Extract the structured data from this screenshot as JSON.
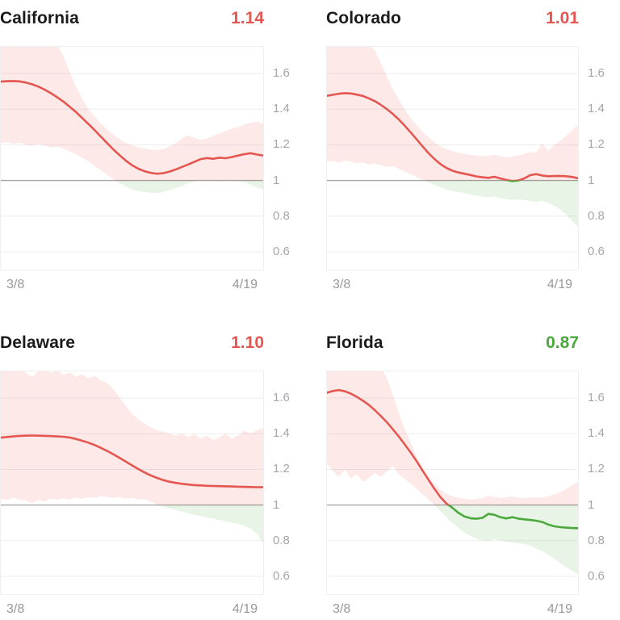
{
  "axis": {
    "yticks": [
      "1.6",
      "1.4",
      "1.2",
      "1",
      "0.8",
      "0.6"
    ],
    "ytick_values": [
      1.6,
      1.4,
      1.2,
      1,
      0.8,
      0.6
    ],
    "y_domain": [
      0.5,
      1.75
    ],
    "baseline_value": 1,
    "x_start_label": "3/8",
    "x_end_label": "4/19"
  },
  "colors": {
    "above": "#e4564f",
    "below": "#4aa83c",
    "band_above": "rgba(228,86,79,0.13)",
    "band_below": "rgba(74,168,60,0.13)",
    "gridline": "#ededed",
    "baseline": "#a6a6a6",
    "tick_text": "#a3a6aa",
    "title_text": "#1b1b1b"
  },
  "chart_data": [
    {
      "type": "line",
      "state": "California",
      "current": "1.14",
      "trend": "above",
      "x_range": [
        "3/8",
        "4/19"
      ],
      "mean": [
        1.555,
        1.557,
        1.558,
        1.556,
        1.55,
        1.54,
        1.527,
        1.51,
        1.49,
        1.468,
        1.443,
        1.415,
        1.385,
        1.352,
        1.318,
        1.283,
        1.247,
        1.21,
        1.175,
        1.142,
        1.112,
        1.086,
        1.066,
        1.052,
        1.043,
        1.038,
        1.041,
        1.05,
        1.062,
        1.076,
        1.09,
        1.105,
        1.12,
        1.126,
        1.122,
        1.128,
        1.125,
        1.132,
        1.14,
        1.148,
        1.153,
        1.146,
        1.14
      ],
      "upper": [
        1.78,
        1.78,
        1.78,
        1.78,
        1.78,
        1.78,
        1.78,
        1.78,
        1.78,
        1.77,
        1.7,
        1.61,
        1.53,
        1.46,
        1.4,
        1.36,
        1.32,
        1.287,
        1.257,
        1.232,
        1.212,
        1.197,
        1.186,
        1.179,
        1.174,
        1.171,
        1.176,
        1.19,
        1.21,
        1.236,
        1.254,
        1.24,
        1.227,
        1.237,
        1.25,
        1.264,
        1.278,
        1.29,
        1.3,
        1.314,
        1.325,
        1.33,
        1.32
      ],
      "lower": [
        1.21,
        1.216,
        1.205,
        1.212,
        1.2,
        1.195,
        1.206,
        1.196,
        1.185,
        1.19,
        1.18,
        1.165,
        1.148,
        1.128,
        1.108,
        1.084,
        1.058,
        1.032,
        1.008,
        0.985,
        0.966,
        0.951,
        0.941,
        0.935,
        0.932,
        0.93,
        0.936,
        0.946,
        0.956,
        0.97,
        0.985,
        0.995,
        1.0,
        0.998,
        1.0,
        0.995,
        0.998,
        1.0,
        0.996,
        0.99,
        0.976,
        0.96,
        0.95
      ]
    },
    {
      "type": "line",
      "state": "Colorado",
      "current": "1.01",
      "trend": "above",
      "x_range": [
        "3/8",
        "4/19"
      ],
      "mean": [
        1.475,
        1.481,
        1.487,
        1.49,
        1.488,
        1.482,
        1.474,
        1.461,
        1.445,
        1.425,
        1.401,
        1.374,
        1.343,
        1.308,
        1.27,
        1.231,
        1.191,
        1.153,
        1.12,
        1.092,
        1.07,
        1.055,
        1.045,
        1.038,
        1.031,
        1.023,
        1.018,
        1.015,
        1.021,
        1.012,
        1.003,
        0.997,
        1.0,
        1.012,
        1.03,
        1.036,
        1.028,
        1.024,
        1.025,
        1.026,
        1.024,
        1.02,
        1.013
      ],
      "upper": [
        1.78,
        1.78,
        1.78,
        1.78,
        1.78,
        1.78,
        1.78,
        1.77,
        1.73,
        1.66,
        1.585,
        1.515,
        1.455,
        1.4,
        1.352,
        1.31,
        1.273,
        1.242,
        1.213,
        1.191,
        1.176,
        1.165,
        1.156,
        1.149,
        1.144,
        1.139,
        1.135,
        1.139,
        1.145,
        1.136,
        1.13,
        1.134,
        1.141,
        1.15,
        1.161,
        1.155,
        1.208,
        1.166,
        1.198,
        1.22,
        1.25,
        1.282,
        1.312
      ],
      "lower": [
        1.105,
        1.11,
        1.1,
        1.112,
        1.105,
        1.096,
        1.101,
        1.09,
        1.096,
        1.085,
        1.076,
        1.081,
        1.066,
        1.05,
        1.035,
        1.019,
        1.004,
        0.989,
        0.975,
        0.961,
        0.95,
        0.941,
        0.935,
        0.929,
        0.921,
        0.915,
        0.909,
        0.905,
        0.911,
        0.901,
        0.895,
        0.89,
        0.895,
        0.89,
        0.885,
        0.879,
        0.886,
        0.874,
        0.859,
        0.838,
        0.809,
        0.772,
        0.74
      ]
    },
    {
      "type": "line",
      "state": "Delaware",
      "current": "1.10",
      "trend": "above",
      "x_range": [
        "3/8",
        "4/19"
      ],
      "mean": [
        1.378,
        1.382,
        1.385,
        1.388,
        1.389,
        1.39,
        1.389,
        1.388,
        1.387,
        1.385,
        1.383,
        1.379,
        1.371,
        1.361,
        1.35,
        1.337,
        1.321,
        1.304,
        1.285,
        1.265,
        1.244,
        1.223,
        1.202,
        1.183,
        1.166,
        1.152,
        1.14,
        1.131,
        1.124,
        1.119,
        1.115,
        1.112,
        1.11,
        1.108,
        1.107,
        1.106,
        1.105,
        1.104,
        1.103,
        1.102,
        1.101,
        1.1,
        1.1
      ],
      "upper": [
        1.77,
        1.78,
        1.76,
        1.78,
        1.74,
        1.72,
        1.75,
        1.77,
        1.74,
        1.76,
        1.73,
        1.745,
        1.72,
        1.735,
        1.71,
        1.725,
        1.7,
        1.683,
        1.652,
        1.603,
        1.556,
        1.512,
        1.48,
        1.456,
        1.436,
        1.421,
        1.41,
        1.4,
        1.39,
        1.4,
        1.381,
        1.398,
        1.372,
        1.39,
        1.363,
        1.381,
        1.4,
        1.372,
        1.39,
        1.418,
        1.4,
        1.42,
        1.432
      ],
      "lower": [
        1.035,
        1.03,
        1.04,
        1.03,
        1.025,
        1.012,
        1.028,
        1.02,
        1.035,
        1.028,
        1.038,
        1.03,
        1.042,
        1.035,
        1.045,
        1.04,
        1.05,
        1.045,
        1.04,
        1.045,
        1.035,
        1.04,
        1.03,
        1.035,
        1.02,
        1.005,
        0.992,
        0.982,
        0.972,
        0.963,
        0.954,
        0.945,
        0.938,
        0.93,
        0.924,
        0.916,
        0.909,
        0.901,
        0.894,
        0.885,
        0.868,
        0.838,
        0.788
      ]
    },
    {
      "type": "line",
      "state": "Florida",
      "current": "0.87",
      "trend": "below",
      "x_range": [
        "3/8",
        "4/19"
      ],
      "mean": [
        1.63,
        1.64,
        1.645,
        1.638,
        1.625,
        1.607,
        1.586,
        1.562,
        1.532,
        1.5,
        1.465,
        1.426,
        1.385,
        1.341,
        1.295,
        1.246,
        1.193,
        1.141,
        1.09,
        1.044,
        1.008,
        0.984,
        0.956,
        0.936,
        0.926,
        0.923,
        0.928,
        0.95,
        0.945,
        0.932,
        0.925,
        0.932,
        0.924,
        0.92,
        0.916,
        0.912,
        0.905,
        0.891,
        0.881,
        0.876,
        0.873,
        0.871,
        0.87
      ],
      "upper": [
        1.78,
        1.78,
        1.78,
        1.78,
        1.78,
        1.78,
        1.78,
        1.78,
        1.78,
        1.77,
        1.715,
        1.62,
        1.52,
        1.43,
        1.35,
        1.272,
        1.21,
        1.158,
        1.118,
        1.086,
        1.062,
        1.049,
        1.041,
        1.035,
        1.031,
        1.034,
        1.04,
        1.051,
        1.046,
        1.04,
        1.042,
        1.048,
        1.041,
        1.038,
        1.042,
        1.045,
        1.04,
        1.05,
        1.06,
        1.072,
        1.09,
        1.112,
        1.13
      ],
      "lower": [
        1.23,
        1.19,
        1.16,
        1.2,
        1.15,
        1.172,
        1.13,
        1.152,
        1.178,
        1.157,
        1.188,
        1.22,
        1.172,
        1.148,
        1.12,
        1.092,
        1.061,
        1.031,
        1.0,
        0.964,
        0.931,
        0.9,
        0.871,
        0.846,
        0.826,
        0.811,
        0.801,
        0.799,
        0.808,
        0.801,
        0.796,
        0.79,
        0.786,
        0.781,
        0.772,
        0.757,
        0.741,
        0.721,
        0.7,
        0.676,
        0.651,
        0.63,
        0.615
      ]
    }
  ]
}
